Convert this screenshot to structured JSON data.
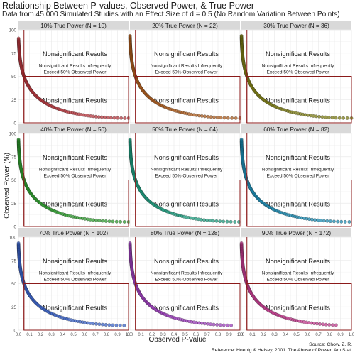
{
  "title": "Relationship Between P-values, Observed Power, & True Power",
  "subtitle": "Data from 45,000 Simulated Studies with an Effect Size of d = 0.5 (No Random Variation Between Points)",
  "xlabel": "Observed P-Value",
  "ylabel": "Observed Power (%)",
  "source": "Source: Chow, Z. R.",
  "reference": "Reference: Hoenig & Heisey, 2001. The Abuse of Power. Am.Stat.",
  "colors": {
    "strip_bg": "#d9d9d9",
    "grid": "#ebebeb",
    "reference_line": "#8b1a1a",
    "point_outline": "#000000"
  },
  "chart_data": {
    "type": "scatter",
    "xlabel": "Observed P-Value",
    "ylabel": "Observed Power (%)",
    "xlim": [
      0,
      1
    ],
    "ylim": [
      0,
      100
    ],
    "x_ticks": [
      "0.0",
      "0.1",
      "0.2",
      "0.3",
      "0.4",
      "0.5",
      "0.6",
      "0.7",
      "0.8",
      "0.9",
      "1.0"
    ],
    "y_ticks": [
      "0",
      "25",
      "50",
      "75",
      "100"
    ],
    "grid": true,
    "reference_lines": {
      "x": 0.05,
      "y": 50
    },
    "annotations": {
      "upper": "Nonsignificant Results",
      "middle_line1": "Nonsignificant Results Infrequently",
      "middle_line2": "Exceed 50% Observed Power",
      "lower": "Nonsignificant Results"
    },
    "series": [
      {
        "name": "10% True Power (N = 10)",
        "color": "#b2363c"
      },
      {
        "name": "20% True Power (N = 22)",
        "color": "#a85a1c"
      },
      {
        "name": "30% True Power (N = 36)",
        "color": "#7a7a14"
      },
      {
        "name": "40% True Power (N = 50)",
        "color": "#2e9a2e"
      },
      {
        "name": "50% True Power (N = 64)",
        "color": "#1d9a7c"
      },
      {
        "name": "60% True Power (N = 82)",
        "color": "#1c8ab0"
      },
      {
        "name": "70% True Power (N = 102)",
        "color": "#3a62c6"
      },
      {
        "name": "80% True Power (N = 128)",
        "color": "#9a3eb8"
      },
      {
        "name": "90% True Power (N = 172)",
        "color": "#c03a8c"
      }
    ]
  }
}
